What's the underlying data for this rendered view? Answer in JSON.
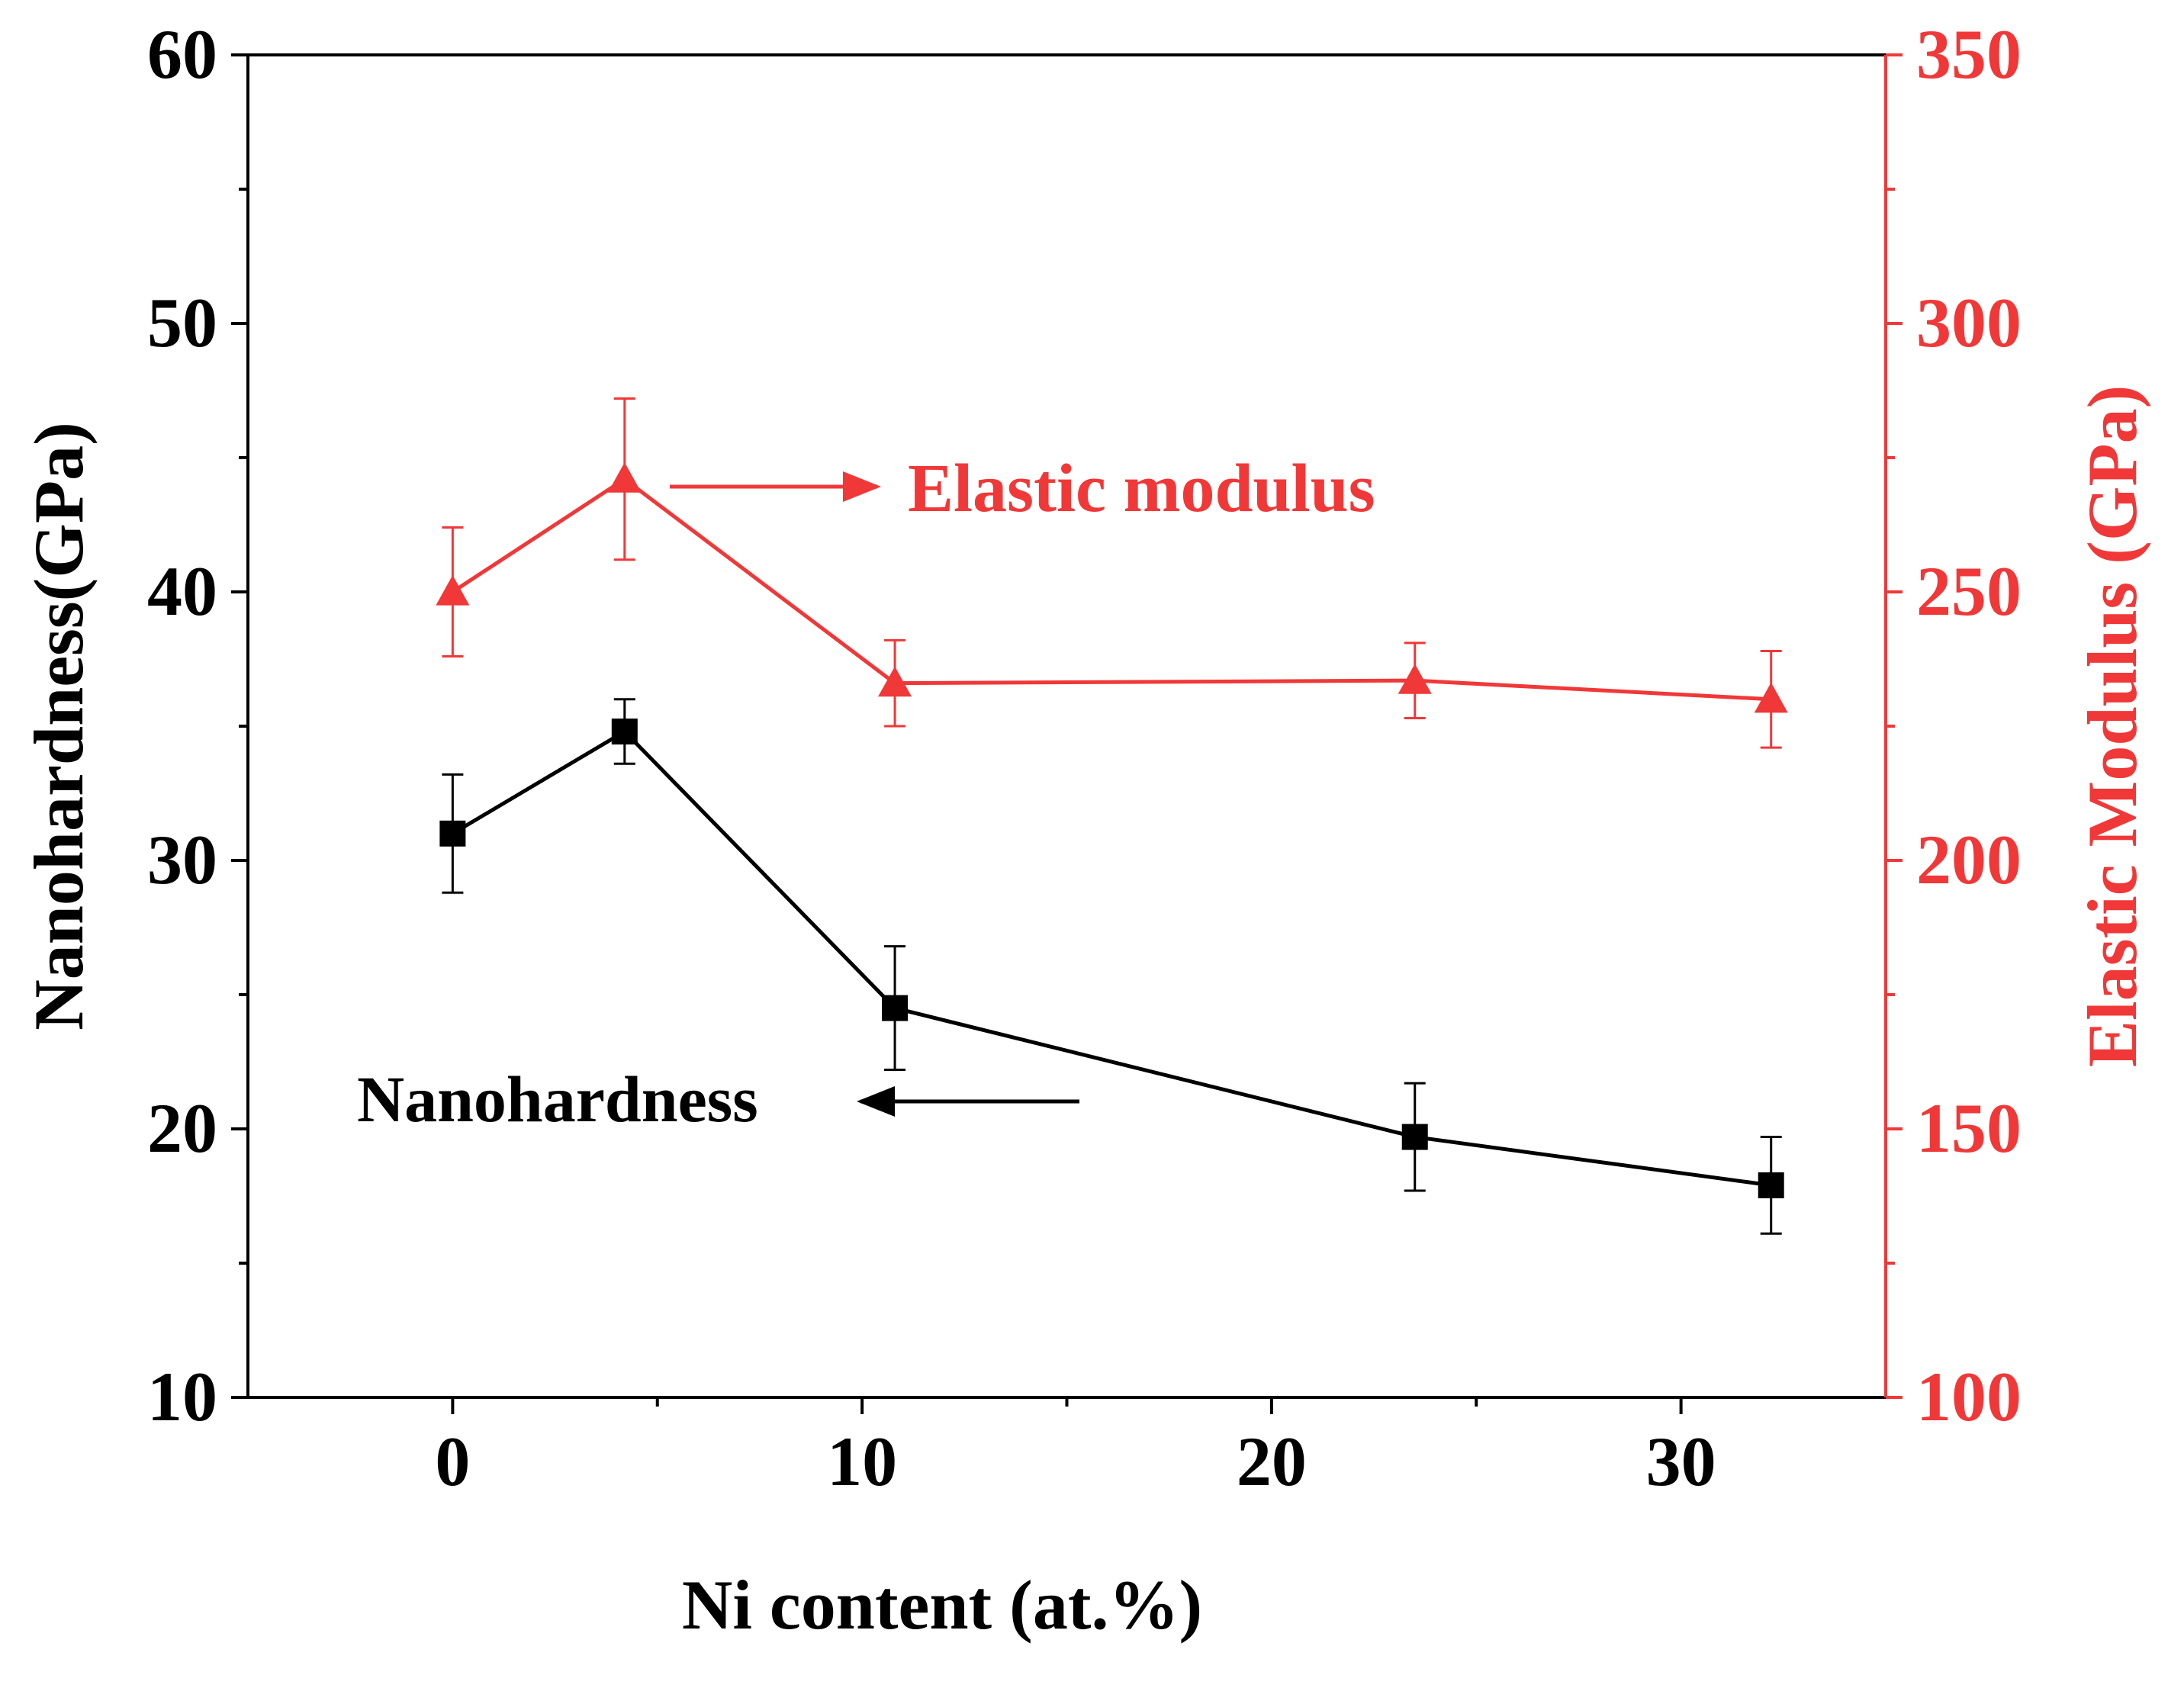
{
  "chart_data": {
    "type": "line",
    "title": "",
    "xlabel": "Ni content (at.%)",
    "ylabel_left": "Nanohardness(GPa)",
    "ylabel_right": "Elastic Modulus (GPa)",
    "xlim": [
      -5,
      35
    ],
    "ylim_left": [
      10,
      60
    ],
    "ylim_right": [
      100,
      350
    ],
    "x_ticks": [
      0,
      10,
      20,
      30
    ],
    "y_ticks_left": [
      10,
      20,
      30,
      40,
      50,
      60
    ],
    "y_ticks_right": [
      100,
      150,
      200,
      250,
      300,
      350
    ],
    "grid": false,
    "series": [
      {
        "name": "Nanohardness",
        "axis": "left",
        "marker": "square",
        "color": "#000000",
        "x": [
          0,
          4.2,
          10.8,
          23.5,
          32.2
        ],
        "y": [
          31.0,
          34.8,
          24.5,
          19.7,
          17.9
        ],
        "err": [
          2.2,
          1.2,
          2.3,
          2.0,
          1.8
        ]
      },
      {
        "name": "Elastic modulus",
        "axis": "right",
        "marker": "triangle",
        "color": "#f03838",
        "x": [
          0,
          4.2,
          10.8,
          23.5,
          32.2
        ],
        "y": [
          250,
          271,
          233,
          233.5,
          230
        ],
        "err": [
          12,
          15,
          8,
          7,
          9
        ]
      }
    ],
    "annotations": {
      "nanohardness_label": "Nanohardness",
      "elastic_label": "Elastic modulus"
    }
  },
  "colors": {
    "left_axis": "#000000",
    "right_axis": "#f03838"
  }
}
